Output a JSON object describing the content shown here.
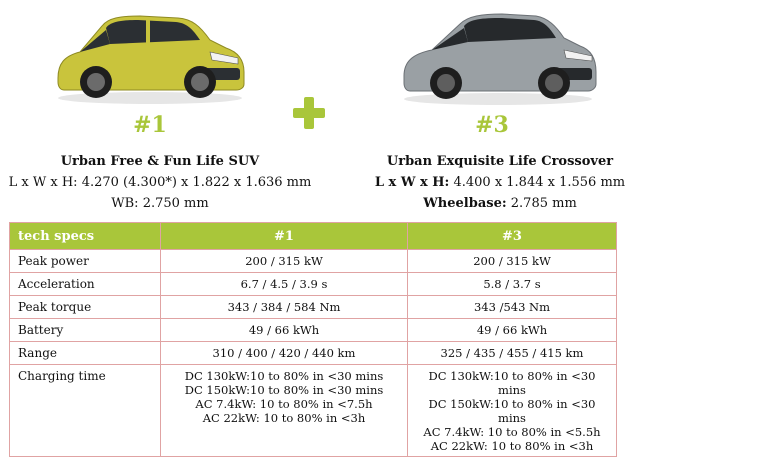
{
  "models": [
    {
      "number": "#1",
      "name": "Urban Free & Fun Life SUV",
      "dims_label": "L x W x H:",
      "dims_value": "4.270 (4.300*) x 1.822 x 1.636 mm",
      "wb_label": "WB:",
      "wb_value": "2.750 mm",
      "body_color": "#c9c43c"
    },
    {
      "number": "#3",
      "name": "Urban Exquisite Life Crossover",
      "dims_label": "L x W x H:",
      "dims_value": "4.400 x 1.844 x 1.556 mm",
      "wb_label": "Wheelbase:",
      "wb_value": "2.785 mm",
      "body_color": "#9aa0a4"
    }
  ],
  "accent_color": "#a9c63a",
  "border_color": "#e0a3a3",
  "table": {
    "header": [
      "tech specs",
      "#1",
      "#3"
    ],
    "rows": [
      {
        "label": "Peak power",
        "m1": [
          "200 / 315 kW"
        ],
        "m3": [
          "200 / 315 kW"
        ]
      },
      {
        "label": "Acceleration",
        "m1": [
          "6.7 / 4.5 / 3.9  s"
        ],
        "m3": [
          "5.8 / 3.7 s"
        ]
      },
      {
        "label": "Peak torque",
        "m1": [
          "343 / 384 / 584 Nm"
        ],
        "m3": [
          "343 /543 Nm"
        ]
      },
      {
        "label": "Battery",
        "m1": [
          "49 / 66 kWh"
        ],
        "m3": [
          "49 / 66 kWh"
        ]
      },
      {
        "label": "Range",
        "m1": [
          "310 / 400 / 420 / 440 km"
        ],
        "m3": [
          "325 / 435 / 455 / 415 km"
        ]
      },
      {
        "label": "Charging time",
        "m1": [
          "DC 130kW:10 to 80% in <30 mins",
          "DC 150kW:10 to 80% in <30 mins",
          "AC 7.4kW: 10 to 80% in <7.5h",
          "AC 22kW: 10 to 80% in <3h"
        ],
        "m3": [
          "DC 130kW:10 to 80% in <30 mins",
          "DC 150kW:10 to 80% in <30 mins",
          "AC 7.4kW: 10 to 80% in <5.5h",
          "AC 22kW: 10 to 80% in <3h"
        ]
      }
    ]
  }
}
